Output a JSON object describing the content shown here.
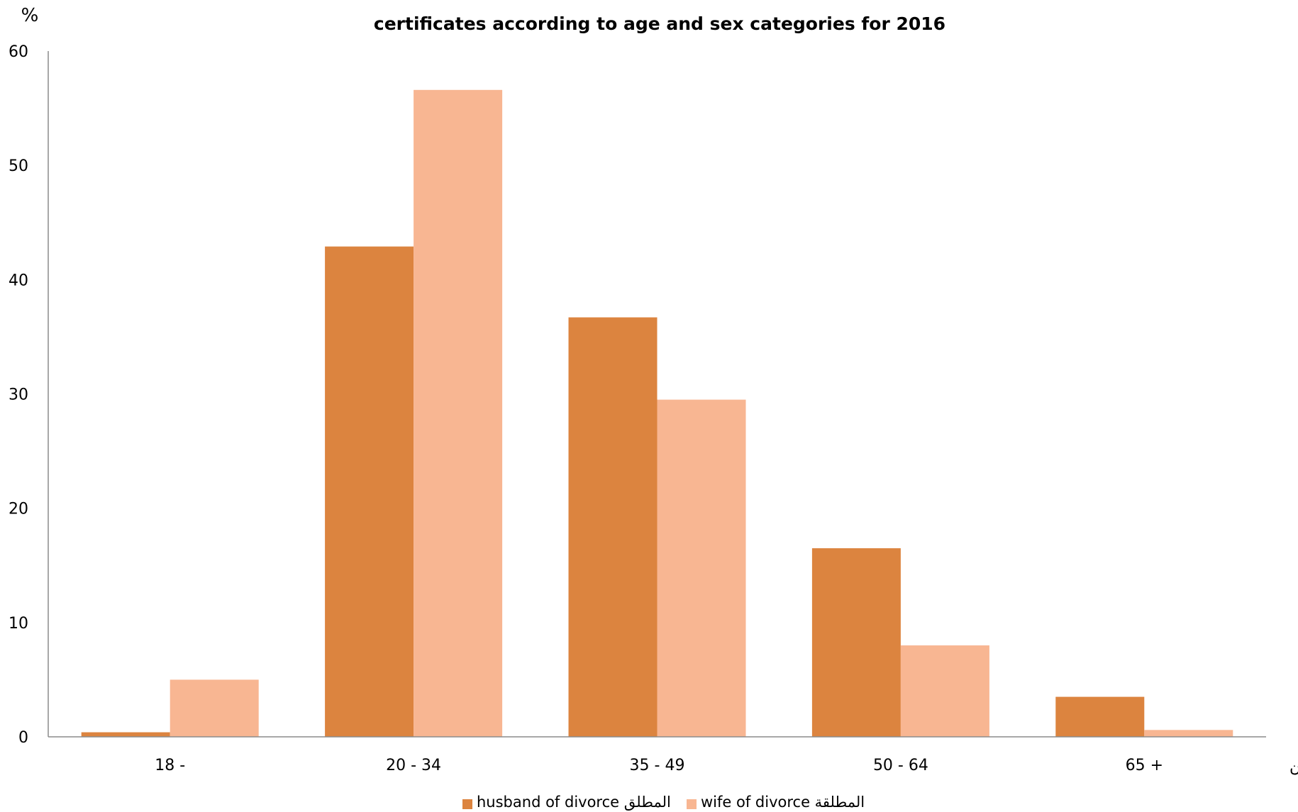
{
  "chart_data": {
    "type": "bar",
    "title": "certificates according to age and sex categories for 2016",
    "ylabel": "%",
    "xlabel": "فئات السن",
    "categories": [
      "18 -",
      "20 - 34",
      "35 - 49",
      "50 - 64",
      "65 +"
    ],
    "ylim": [
      0,
      60
    ],
    "yticks": [
      0,
      10,
      20,
      30,
      40,
      50,
      60
    ],
    "grid": false,
    "legend_position": "bottom",
    "series": [
      {
        "name": "husband of divorce المطلق",
        "color": "#DC843F",
        "values": [
          0.4,
          42.9,
          36.7,
          16.5,
          3.5
        ]
      },
      {
        "name": "wife of divorce  المطلقة",
        "color": "#F8B692",
        "values": [
          5.0,
          56.6,
          29.5,
          8.0,
          0.6
        ]
      }
    ]
  }
}
